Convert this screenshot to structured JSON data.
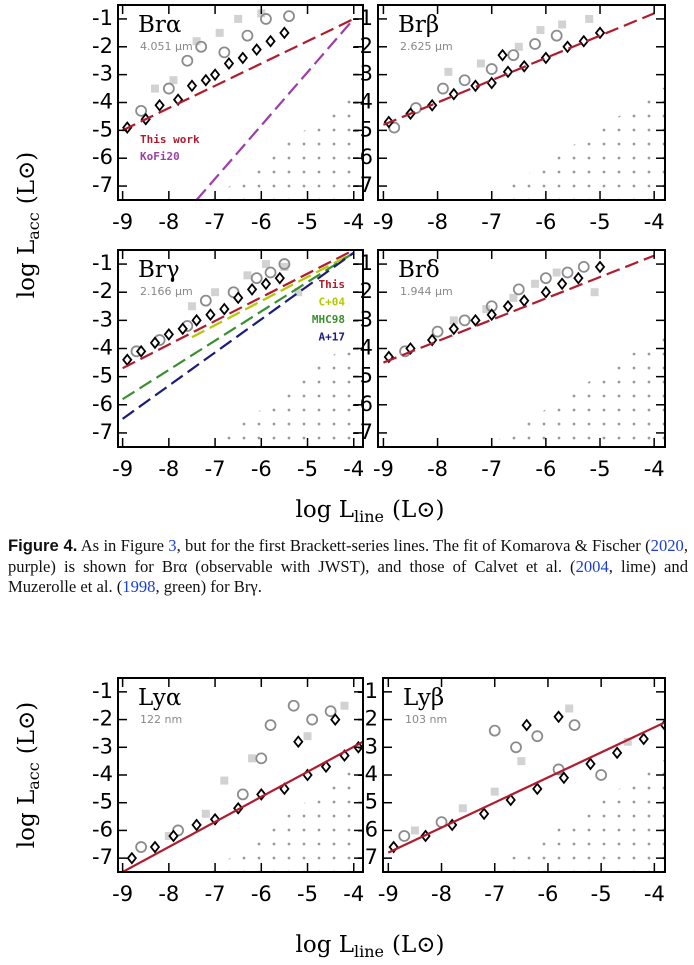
{
  "axis_labels": {
    "y_main": "log L",
    "y_sub": "acc",
    "y_unit": "(L⊙)",
    "x_main": "log L",
    "x_sub": "line",
    "x_unit": "(L⊙)"
  },
  "caption": {
    "label": "Figure 4.",
    "parts": [
      {
        "text": " As in Figure "
      },
      {
        "text": "3",
        "link": true
      },
      {
        "text": ", but for the first Brackett-series lines. The fit of Komarova & Fischer ("
      },
      {
        "text": "2020",
        "link": true
      },
      {
        "text": ", purple) is shown for Brα (observable with JWST), and those of Calvet et al. ("
      },
      {
        "text": "2004",
        "link": true
      },
      {
        "text": ", lime) and Muzerolle et al. ("
      },
      {
        "text": "1998",
        "link": true
      },
      {
        "text": ", green) for Brγ."
      }
    ]
  },
  "chart_data": [
    {
      "type": "scatter",
      "title": "Brα",
      "subtitle": "4.051 μm",
      "xlim": [
        -9.1,
        -3.8
      ],
      "ylim": [
        -7.5,
        -0.5
      ],
      "xticks": [
        -9,
        -8,
        -7,
        -6,
        -5,
        -4
      ],
      "yticks": [
        -1,
        -2,
        -3,
        -4,
        -5,
        -6,
        -7
      ],
      "legend": "lower left",
      "series": [
        {
          "marker": "square",
          "color": "#d2d2d2",
          "x": [
            -8.3,
            -7.9,
            -7.4,
            -6.9,
            -6.5,
            -6.0
          ],
          "values": [
            -3.5,
            -3.2,
            -1.8,
            -1.5,
            -1.0,
            -0.8
          ]
        },
        {
          "marker": "circle",
          "color": "#8c8c8c",
          "x": [
            -8.6,
            -8.0,
            -7.6,
            -7.3,
            -6.8,
            -6.3,
            -5.9,
            -5.4
          ],
          "values": [
            -4.3,
            -3.5,
            -2.5,
            -2.0,
            -2.2,
            -1.6,
            -1.0,
            -0.9
          ]
        },
        {
          "marker": "diamond",
          "color": "#000000",
          "x": [
            -8.9,
            -8.5,
            -8.2,
            -7.8,
            -7.5,
            -7.2,
            -7.0,
            -6.7,
            -6.4,
            -6.1,
            -5.8,
            -5.5
          ],
          "values": [
            -4.9,
            -4.6,
            -4.1,
            -3.9,
            -3.4,
            -3.2,
            -3.0,
            -2.6,
            -2.4,
            -2.1,
            -1.8,
            -1.5
          ]
        },
        {
          "marker": "line",
          "name": "This work",
          "color": "#b01c2e",
          "dash": true,
          "x": [
            -9,
            -4
          ],
          "values": [
            -5,
            -1
          ]
        },
        {
          "marker": "line",
          "name": "KoFi20",
          "color": "#9b3fa6",
          "dash": true,
          "x": [
            -7.4,
            -4
          ],
          "values": [
            -7.5,
            -1
          ]
        }
      ]
    },
    {
      "type": "scatter",
      "title": "Brβ",
      "subtitle": "2.625 μm",
      "xlim": [
        -9.1,
        -3.8
      ],
      "ylim": [
        -7.5,
        -0.5
      ],
      "xticks": [
        -9,
        -8,
        -7,
        -6,
        -5,
        -4
      ],
      "yticks": [
        -1,
        -2,
        -3,
        -4,
        -5,
        -6,
        -7
      ],
      "series": [
        {
          "marker": "square",
          "color": "#d2d2d2",
          "x": [
            -7.8,
            -7.2,
            -6.5,
            -6.1,
            -5.7,
            -5.2
          ],
          "values": [
            -2.9,
            -2.6,
            -2.0,
            -1.4,
            -1.2,
            -1.0
          ]
        },
        {
          "marker": "circle",
          "color": "#8c8c8c",
          "x": [
            -8.8,
            -8.4,
            -7.9,
            -7.5,
            -7.0,
            -6.6,
            -6.2,
            -5.8
          ],
          "values": [
            -4.9,
            -4.2,
            -3.5,
            -3.2,
            -2.8,
            -2.3,
            -1.9,
            -1.6
          ]
        },
        {
          "marker": "diamond",
          "color": "#000000",
          "x": [
            -8.9,
            -8.5,
            -8.1,
            -7.7,
            -7.3,
            -7.0,
            -6.7,
            -6.4,
            -6.0,
            -5.6,
            -5.3,
            -5.0,
            -6.8
          ],
          "values": [
            -4.7,
            -4.4,
            -4.1,
            -3.7,
            -3.4,
            -3.3,
            -2.9,
            -2.7,
            -2.4,
            -2.0,
            -1.8,
            -1.5,
            -2.3
          ]
        },
        {
          "marker": "line",
          "color": "#b01c2e",
          "dash": true,
          "x": [
            -9,
            -4
          ],
          "values": [
            -4.8,
            -0.8
          ]
        }
      ]
    },
    {
      "type": "scatter",
      "title": "Brγ",
      "subtitle": "2.166 μm",
      "xlim": [
        -9.1,
        -3.8
      ],
      "ylim": [
        -7.5,
        -0.5
      ],
      "xticks": [
        -9,
        -8,
        -7,
        -6,
        -5,
        -4
      ],
      "yticks": [
        -1,
        -2,
        -3,
        -4,
        -5,
        -6,
        -7
      ],
      "legend": "upper right",
      "series": [
        {
          "marker": "square",
          "color": "#d2d2d2",
          "x": [
            -7.5,
            -7.0,
            -6.3,
            -5.9,
            -5.5,
            -5.2
          ],
          "values": [
            -2.5,
            -2.0,
            -1.4,
            -1.0,
            -1.1,
            -2.0
          ]
        },
        {
          "marker": "circle",
          "color": "#8c8c8c",
          "x": [
            -8.7,
            -8.2,
            -7.6,
            -7.2,
            -6.6,
            -6.1,
            -5.8,
            -5.5
          ],
          "values": [
            -4.1,
            -3.7,
            -3.2,
            -2.3,
            -2.0,
            -1.5,
            -1.3,
            -1.0
          ]
        },
        {
          "marker": "diamond",
          "color": "#000000",
          "x": [
            -8.9,
            -8.6,
            -8.3,
            -8.0,
            -7.7,
            -7.4,
            -7.1,
            -6.8,
            -6.5,
            -6.2,
            -5.9,
            -5.6
          ],
          "values": [
            -4.4,
            -4.1,
            -3.8,
            -3.5,
            -3.3,
            -3.0,
            -2.8,
            -2.6,
            -2.2,
            -1.9,
            -1.7,
            -1.5
          ]
        },
        {
          "marker": "line",
          "name": "This",
          "color": "#b01c2e",
          "dash": true,
          "x": [
            -9,
            -4
          ],
          "values": [
            -4.7,
            -0.5
          ]
        },
        {
          "marker": "line",
          "name": "C+04",
          "color": "#b5c900",
          "dash": true,
          "x": [
            -7.5,
            -4
          ],
          "values": [
            -3.6,
            -0.6
          ]
        },
        {
          "marker": "line",
          "name": "MHC98",
          "color": "#3a8f2e",
          "dash": true,
          "x": [
            -9,
            -4
          ],
          "values": [
            -5.8,
            -0.6
          ]
        },
        {
          "marker": "line",
          "name": "A+17",
          "color": "#1c1c7a",
          "dash": true,
          "x": [
            -9,
            -4
          ],
          "values": [
            -6.5,
            -0.6
          ]
        }
      ]
    },
    {
      "type": "scatter",
      "title": "Brδ",
      "subtitle": "1.944 μm",
      "xlim": [
        -9.1,
        -3.8
      ],
      "ylim": [
        -7.5,
        -0.5
      ],
      "xticks": [
        -9,
        -8,
        -7,
        -6,
        -5,
        -4
      ],
      "yticks": [
        -1,
        -2,
        -3,
        -4,
        -5,
        -6,
        -7
      ],
      "series": [
        {
          "marker": "square",
          "color": "#d2d2d2",
          "x": [
            -7.7,
            -7.1,
            -6.6,
            -6.2,
            -5.8,
            -5.1
          ],
          "values": [
            -3.0,
            -2.6,
            -2.2,
            -1.7,
            -1.3,
            -2.0
          ]
        },
        {
          "marker": "circle",
          "color": "#8c8c8c",
          "x": [
            -8.6,
            -8.0,
            -7.5,
            -7.0,
            -6.5,
            -6.0,
            -5.6,
            -5.3
          ],
          "values": [
            -4.1,
            -3.4,
            -3.0,
            -2.5,
            -1.9,
            -1.5,
            -1.3,
            -1.1
          ]
        },
        {
          "marker": "diamond",
          "color": "#000000",
          "x": [
            -8.9,
            -8.5,
            -8.1,
            -7.7,
            -7.3,
            -7.0,
            -6.7,
            -6.4,
            -6.0,
            -5.7,
            -5.4,
            -5.0
          ],
          "values": [
            -4.3,
            -4.0,
            -3.7,
            -3.3,
            -3.0,
            -2.8,
            -2.5,
            -2.3,
            -2.0,
            -1.7,
            -1.5,
            -1.1
          ]
        },
        {
          "marker": "line",
          "color": "#b01c2e",
          "dash": true,
          "x": [
            -9,
            -4
          ],
          "values": [
            -4.5,
            -0.7
          ]
        }
      ]
    },
    {
      "type": "scatter",
      "title": "Lyα",
      "subtitle": "122 nm",
      "xlim": [
        -9.1,
        -3.8
      ],
      "ylim": [
        -7.5,
        -0.5
      ],
      "xticks": [
        -9,
        -8,
        -7,
        -6,
        -5,
        -4
      ],
      "yticks": [
        -1,
        -2,
        -3,
        -4,
        -5,
        -6,
        -7
      ],
      "series": [
        {
          "marker": "square",
          "color": "#d2d2d2",
          "x": [
            -8.0,
            -7.2,
            -6.8,
            -6.2,
            -5.0,
            -4.2
          ],
          "values": [
            -6.2,
            -5.4,
            -4.2,
            -3.4,
            -2.6,
            -1.5
          ]
        },
        {
          "marker": "circle",
          "color": "#8c8c8c",
          "x": [
            -8.6,
            -7.8,
            -6.4,
            -6.0,
            -5.8,
            -5.3,
            -4.9,
            -4.5
          ],
          "values": [
            -6.6,
            -6.0,
            -4.7,
            -3.4,
            -2.2,
            -1.5,
            -2.0,
            -1.7
          ]
        },
        {
          "marker": "diamond",
          "color": "#000000",
          "x": [
            -8.8,
            -8.3,
            -7.9,
            -7.4,
            -7.0,
            -6.5,
            -6.0,
            -5.5,
            -5.0,
            -4.6,
            -4.2,
            -3.9,
            -5.2,
            -4.4
          ],
          "values": [
            -7.0,
            -6.6,
            -6.2,
            -5.8,
            -5.6,
            -5.2,
            -4.7,
            -4.5,
            -4.0,
            -3.7,
            -3.3,
            -3.0,
            -2.8,
            -2.0
          ]
        },
        {
          "marker": "line",
          "color": "#b01c2e",
          "dash": false,
          "x": [
            -9,
            -3.8
          ],
          "values": [
            -7.5,
            -2.8
          ]
        }
      ]
    },
    {
      "type": "scatter",
      "title": "Lyβ",
      "subtitle": "103 nm",
      "xlim": [
        -9.1,
        -3.8
      ],
      "ylim": [
        -7.5,
        -0.5
      ],
      "xticks": [
        -9,
        -8,
        -7,
        -6,
        -5,
        -4
      ],
      "yticks": [
        -1,
        -2,
        -3,
        -4,
        -5,
        -6,
        -7
      ],
      "series": [
        {
          "marker": "square",
          "color": "#d2d2d2",
          "x": [
            -8.5,
            -7.6,
            -7.0,
            -6.5,
            -5.6,
            -4.5
          ],
          "values": [
            -6.0,
            -5.2,
            -4.6,
            -3.5,
            -1.6,
            -2.8
          ]
        },
        {
          "marker": "circle",
          "color": "#8c8c8c",
          "x": [
            -8.7,
            -8.0,
            -7.0,
            -6.6,
            -6.2,
            -5.8,
            -5.5,
            -5.0
          ],
          "values": [
            -6.2,
            -5.7,
            -2.4,
            -3.0,
            -2.6,
            -3.8,
            -2.2,
            -4.0
          ]
        },
        {
          "marker": "diamond",
          "color": "#000000",
          "x": [
            -8.9,
            -8.3,
            -7.8,
            -7.2,
            -6.7,
            -6.2,
            -5.7,
            -5.2,
            -4.7,
            -4.2,
            -3.8,
            -6.4,
            -5.8
          ],
          "values": [
            -6.6,
            -6.2,
            -5.8,
            -5.4,
            -4.9,
            -4.5,
            -4.1,
            -3.6,
            -3.2,
            -2.7,
            -2.2,
            -2.2,
            -1.9
          ]
        },
        {
          "marker": "line",
          "color": "#b01c2e",
          "dash": false,
          "x": [
            -9,
            -3.8
          ],
          "values": [
            -6.8,
            -2.1
          ]
        }
      ]
    }
  ]
}
